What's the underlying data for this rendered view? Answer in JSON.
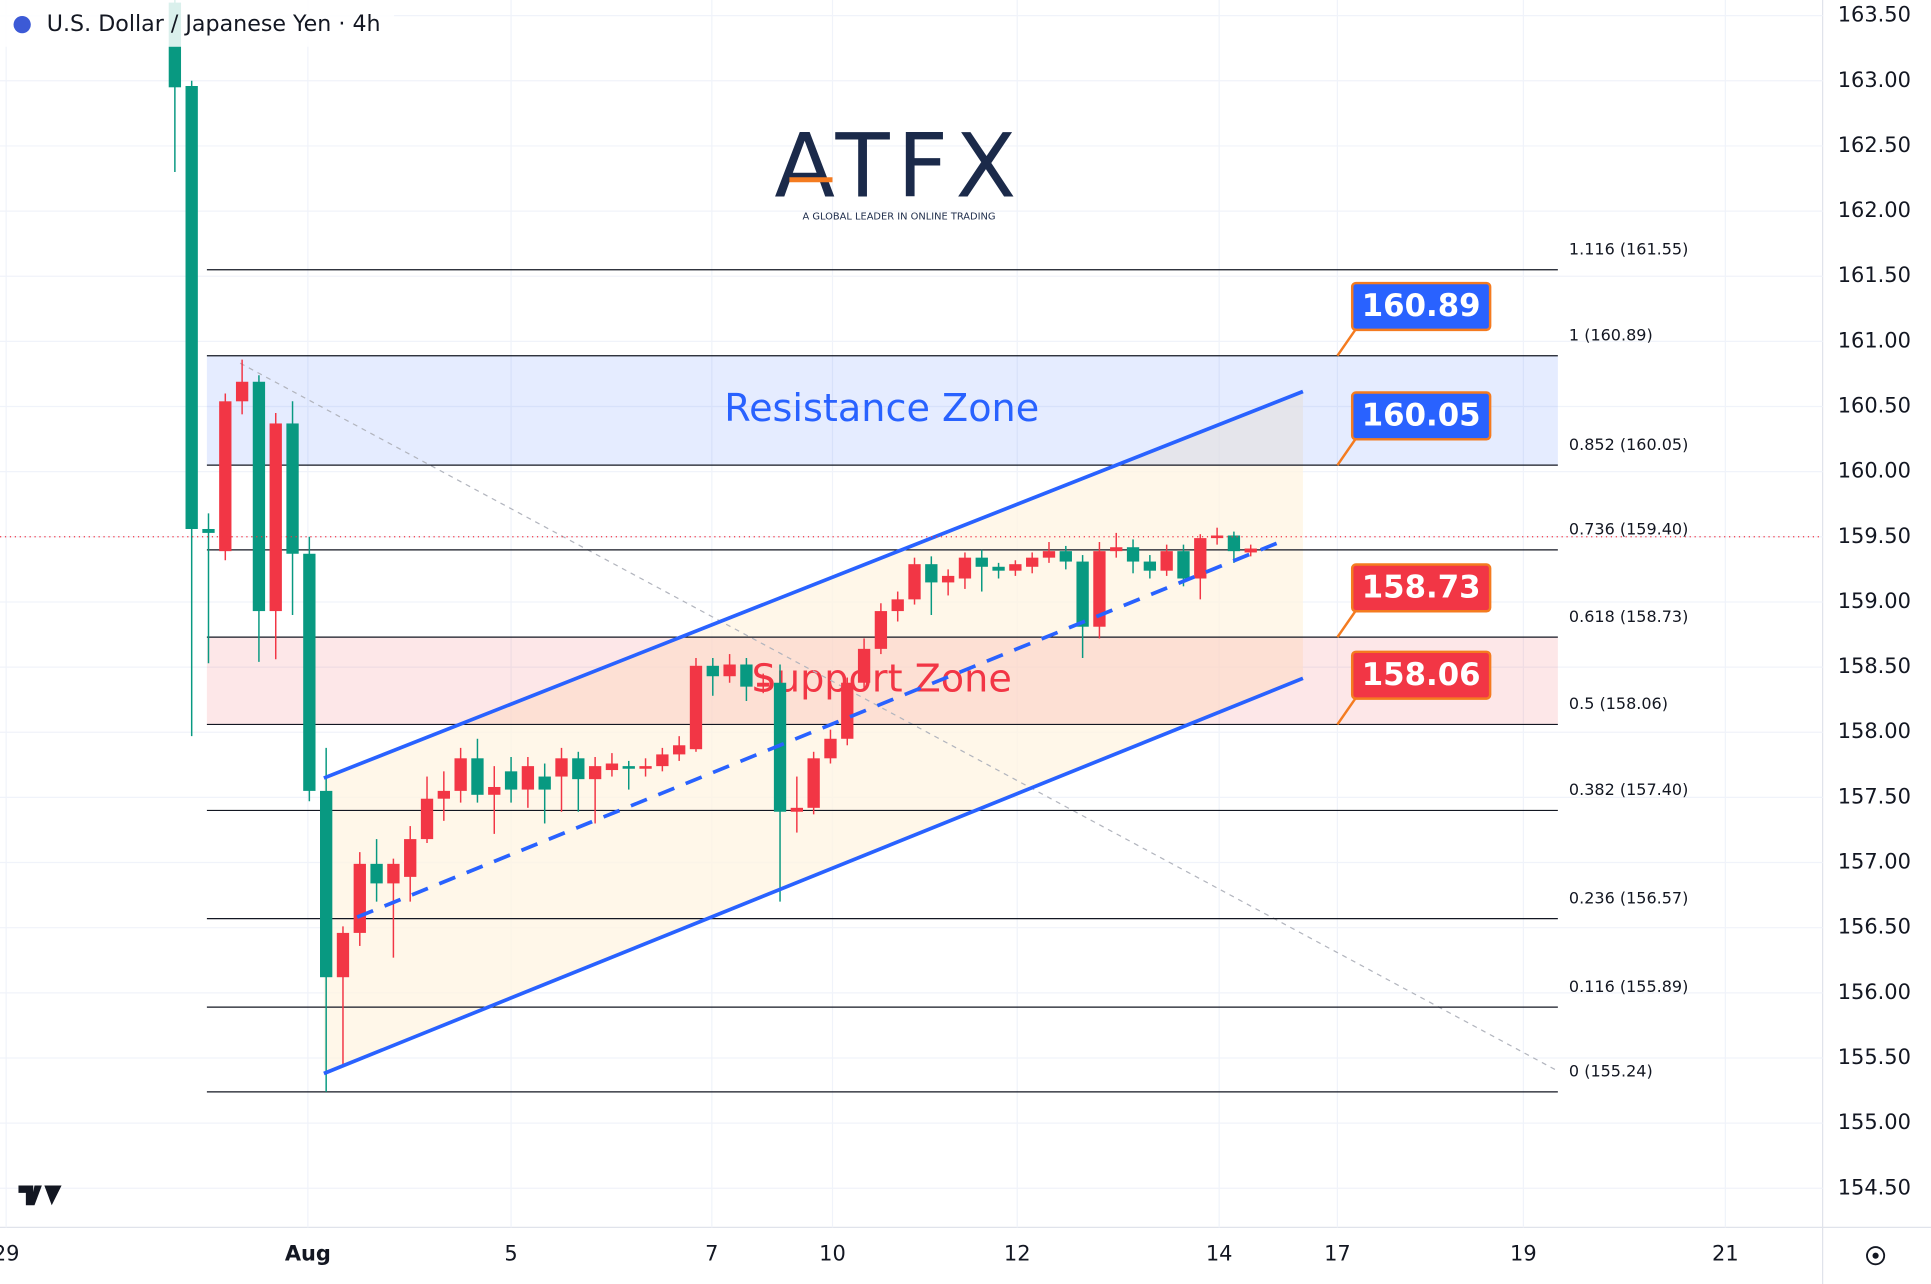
{
  "chart_data": {
    "type": "candlestick",
    "title": "U.S. Dollar / Japanese Yen · 4h",
    "logo": "ATFX",
    "logo_tagline": "A GLOBAL LEADER IN ONLINE TRADING",
    "up_color": "#f23645",
    "down_color": "#089981",
    "ylim": [
      154.2,
      163.62
    ],
    "yticks": [
      {
        "value": 154.5,
        "label": "154.50"
      },
      {
        "value": 155,
        "label": "155.00"
      },
      {
        "value": 155.5,
        "label": "155.50"
      },
      {
        "value": 156,
        "label": "156.00"
      },
      {
        "value": 156.5,
        "label": "156.50"
      },
      {
        "value": 157,
        "label": "157.00"
      },
      {
        "value": 157.5,
        "label": "157.50"
      },
      {
        "value": 158,
        "label": "158.00"
      },
      {
        "value": 158.5,
        "label": "158.50"
      },
      {
        "value": 159,
        "label": "159.00"
      },
      {
        "value": 159.5,
        "label": "159.50"
      },
      {
        "value": 160,
        "label": "160.00"
      },
      {
        "value": 160.5,
        "label": "160.50"
      },
      {
        "value": 161,
        "label": "161.00"
      },
      {
        "value": 161.5,
        "label": "161.50"
      },
      {
        "value": 162,
        "label": "162.00"
      },
      {
        "value": 162.5,
        "label": "162.50"
      },
      {
        "value": 163,
        "label": "163.00"
      },
      {
        "value": 163.5,
        "label": "163.50"
      }
    ],
    "xticks": [
      "29",
      "Aug",
      "5",
      "7",
      "10",
      "12",
      "14",
      "17",
      "19",
      "21"
    ],
    "open": [
      163.6,
      162.96,
      159.56,
      159.39,
      160.54,
      160.69,
      158.93,
      160.37,
      159.37,
      157.55,
      156.12,
      156.46,
      156.99,
      156.84,
      156.89,
      157.18,
      157.49,
      157.55,
      157.8,
      157.52,
      157.7,
      157.56,
      157.66,
      157.66,
      157.8,
      157.64,
      157.71,
      157.74,
      157.72,
      157.74,
      157.83,
      157.87,
      158.51,
      158.43,
      158.52,
      158.35,
      158.38,
      157.39,
      157.42,
      157.8,
      157.95,
      158.38,
      158.64,
      158.93,
      159.02,
      159.29,
      159.15,
      159.18,
      159.34,
      159.27,
      159.24,
      159.27,
      159.34,
      159.39,
      159.31,
      158.81,
      159.39,
      159.42,
      159.31,
      159.24,
      159.39,
      159.18,
      159.49,
      159.51,
      159.38
    ],
    "high": [
      163.7,
      163.0,
      159.68,
      160.6,
      160.86,
      160.74,
      160.45,
      160.54,
      159.5,
      157.88,
      156.51,
      157.08,
      157.18,
      157.03,
      157.28,
      157.66,
      157.7,
      157.88,
      157.95,
      157.74,
      157.81,
      157.81,
      157.76,
      157.88,
      157.85,
      157.81,
      157.84,
      157.78,
      157.8,
      157.88,
      157.97,
      158.57,
      158.57,
      158.6,
      158.57,
      158.45,
      158.52,
      157.66,
      157.85,
      158.02,
      158.42,
      158.72,
      158.99,
      159.08,
      159.34,
      159.35,
      159.25,
      159.38,
      159.4,
      159.3,
      159.32,
      159.38,
      159.46,
      159.43,
      159.36,
      159.46,
      159.53,
      159.48,
      159.36,
      159.44,
      159.44,
      159.52,
      159.57,
      159.54,
      159.44
    ],
    "low": [
      162.3,
      157.97,
      158.53,
      159.32,
      160.44,
      158.54,
      158.56,
      158.9,
      157.47,
      155.24,
      155.43,
      156.36,
      156.7,
      156.27,
      156.7,
      157.15,
      157.32,
      157.46,
      157.46,
      157.22,
      157.46,
      157.42,
      157.3,
      157.39,
      157.39,
      157.3,
      157.66,
      157.56,
      157.66,
      157.7,
      157.78,
      157.85,
      158.28,
      158.38,
      158.24,
      158.3,
      156.7,
      157.23,
      157.37,
      157.76,
      157.9,
      158.33,
      158.6,
      158.85,
      158.98,
      158.9,
      159.05,
      159.1,
      159.08,
      159.18,
      159.2,
      159.22,
      159.3,
      159.25,
      158.57,
      158.72,
      159.34,
      159.22,
      159.18,
      159.2,
      159.12,
      159.02,
      159.44,
      159.3,
      159.35
    ],
    "close": [
      162.95,
      159.56,
      159.53,
      160.54,
      160.69,
      158.93,
      160.37,
      159.37,
      157.55,
      156.12,
      156.46,
      156.99,
      156.84,
      156.99,
      157.18,
      157.49,
      157.55,
      157.8,
      157.52,
      157.58,
      157.56,
      157.74,
      157.56,
      157.8,
      157.64,
      157.74,
      157.76,
      157.72,
      157.74,
      157.83,
      157.9,
      158.51,
      158.43,
      158.52,
      158.35,
      158.38,
      157.39,
      157.42,
      157.8,
      157.95,
      158.38,
      158.64,
      158.93,
      159.02,
      159.29,
      159.15,
      159.2,
      159.34,
      159.27,
      159.24,
      159.29,
      159.34,
      159.39,
      159.31,
      158.81,
      159.39,
      159.42,
      159.31,
      159.24,
      159.39,
      159.18,
      159.49,
      159.51,
      159.39,
      159.41
    ],
    "fib_levels": [
      {
        "label": "1.116 (161.55)",
        "value": 161.55
      },
      {
        "label": "1 (160.89)",
        "value": 160.89
      },
      {
        "label": "0.852 (160.05)",
        "value": 160.05
      },
      {
        "label": "0.736 (159.40)",
        "value": 159.4
      },
      {
        "label": "0.618 (158.73)",
        "value": 158.73
      },
      {
        "label": "0.5 (158.06)",
        "value": 158.06
      },
      {
        "label": "0.382 (157.40)",
        "value": 157.4
      },
      {
        "label": "0.236 (156.57)",
        "value": 156.57
      },
      {
        "label": "0.116 (155.89)",
        "value": 155.89
      },
      {
        "label": "0 (155.24)",
        "value": 155.24
      }
    ],
    "zones": [
      {
        "label": "Resistance Zone",
        "low": 160.05,
        "high": 160.89,
        "color": "#2962ff"
      },
      {
        "label": "Support Zone",
        "low": 158.06,
        "high": 158.73,
        "color": "#f23645"
      }
    ],
    "callouts": [
      {
        "value": 160.89,
        "color": "#2962ff"
      },
      {
        "value": 160.05,
        "color": "#2962ff"
      },
      {
        "value": 158.73,
        "color": "#f23645"
      },
      {
        "value": 158.06,
        "color": "#f23645"
      }
    ]
  }
}
